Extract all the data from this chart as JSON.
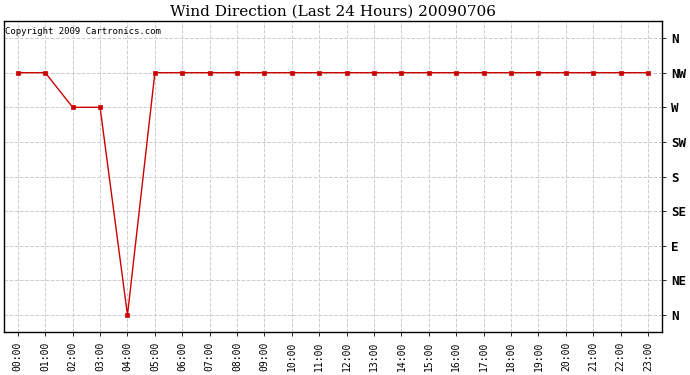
{
  "title": "Wind Direction (Last 24 Hours) 20090706",
  "copyright_text": "Copyright 2009 Cartronics.com",
  "x_labels": [
    "00:00",
    "01:00",
    "02:00",
    "03:00",
    "04:00",
    "05:00",
    "06:00",
    "07:00",
    "08:00",
    "09:00",
    "10:00",
    "11:00",
    "12:00",
    "13:00",
    "14:00",
    "15:00",
    "16:00",
    "17:00",
    "18:00",
    "19:00",
    "20:00",
    "21:00",
    "22:00",
    "23:00"
  ],
  "y_labels": [
    "N",
    "NE",
    "E",
    "SE",
    "S",
    "SW",
    "W",
    "NW",
    "N"
  ],
  "y_values": [
    0,
    1,
    2,
    3,
    4,
    5,
    6,
    7,
    8
  ],
  "wind_data": [
    7,
    7,
    6,
    6,
    0,
    7,
    7,
    7,
    7,
    7,
    7,
    7,
    7,
    7,
    7,
    7,
    7,
    7,
    7,
    7,
    7,
    7,
    7,
    7
  ],
  "line_color": "#cc0000",
  "marker_color": "#cc0000",
  "plot_bg_color": "#ffffff",
  "fig_bg_color": "#ffffff",
  "grid_color": "#cccccc",
  "title_fontsize": 11,
  "copyright_fontsize": 6.5,
  "axis_tick_fontsize": 7,
  "y_tick_fontsize": 9
}
